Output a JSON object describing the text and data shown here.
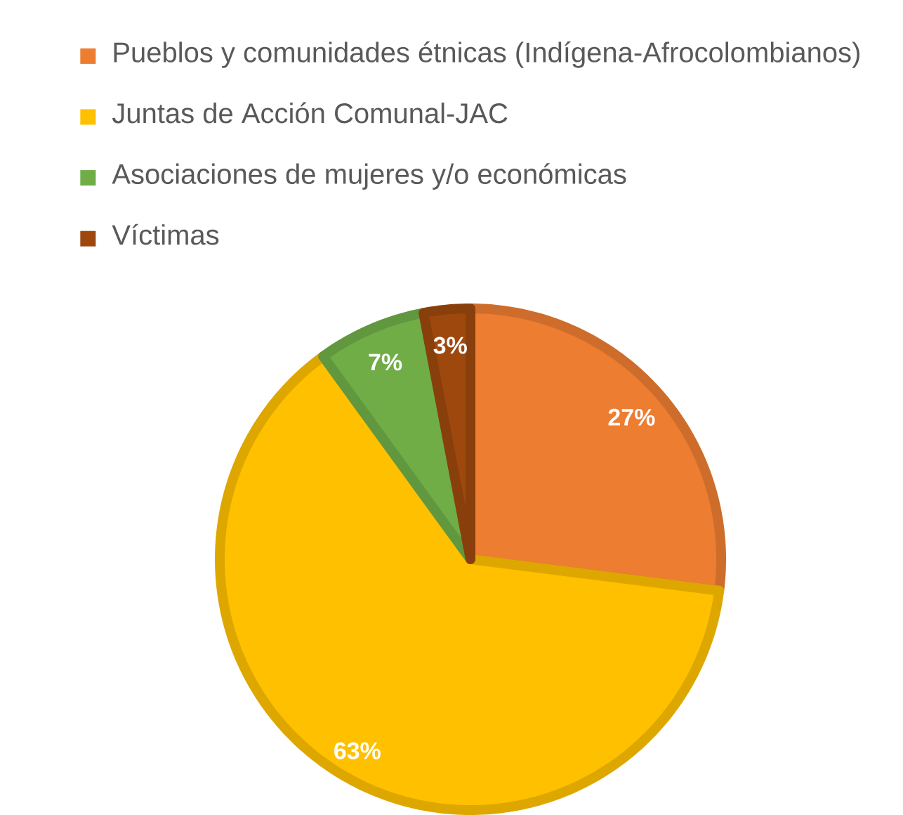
{
  "chart_data": {
    "type": "pie",
    "categories": [
      "Pueblos y comunidades étnicas (Indígena-Afrocolombianos)",
      "Juntas de Acción Comunal-JAC",
      "Asociaciones de mujeres y/o económicas",
      "Víctimas"
    ],
    "values": [
      27,
      63,
      7,
      3
    ],
    "colors": [
      "#ED7D31",
      "#FFC000",
      "#70AD47",
      "#9E480E"
    ],
    "value_labels": [
      "27%",
      "63%",
      "7%",
      "3%"
    ],
    "legend": "top"
  }
}
